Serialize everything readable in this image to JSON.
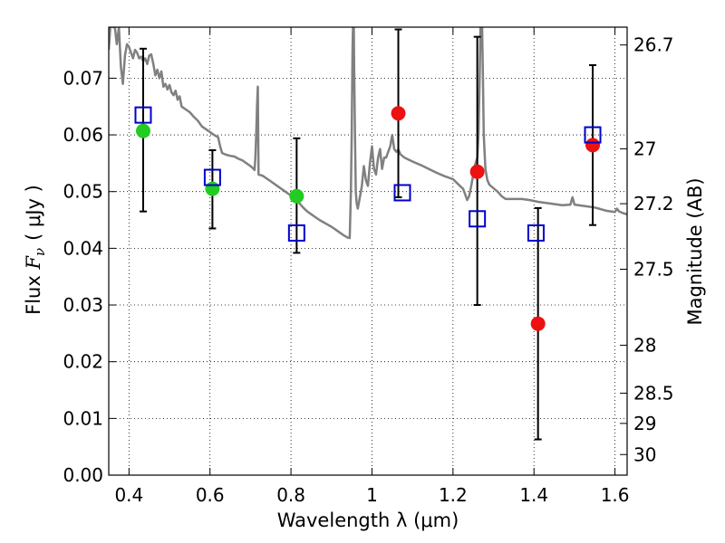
{
  "chart_data": {
    "type": "scatter",
    "xlabel": "Wavelength  λ (μm)",
    "ylabel": "Flux  F_ν  ( μJy )",
    "ylabel_parts": {
      "prefix": "Flux ",
      "symbol": "F",
      "subscript": "ν",
      "unit": "( μJy )"
    },
    "y2label": "Magnitude (AB)",
    "xlim": [
      0.35,
      1.63
    ],
    "ylim": [
      0.0,
      0.079
    ],
    "grid": true,
    "x_ticks": [
      {
        "value": 0.4,
        "label": "0.4"
      },
      {
        "value": 0.6,
        "label": "0.6"
      },
      {
        "value": 0.8,
        "label": "0.8"
      },
      {
        "value": 1.0,
        "label": "1"
      },
      {
        "value": 1.2,
        "label": "1.2"
      },
      {
        "value": 1.4,
        "label": "1.4"
      },
      {
        "value": 1.6,
        "label": "1.6"
      }
    ],
    "y_ticks": [
      {
        "value": 0.0,
        "label": "0.00"
      },
      {
        "value": 0.01,
        "label": "0.01"
      },
      {
        "value": 0.02,
        "label": "0.02"
      },
      {
        "value": 0.03,
        "label": "0.03"
      },
      {
        "value": 0.04,
        "label": "0.04"
      },
      {
        "value": 0.05,
        "label": "0.05"
      },
      {
        "value": 0.06,
        "label": "0.06"
      },
      {
        "value": 0.07,
        "label": "0.07"
      }
    ],
    "mag_ticks": [
      {
        "mag": 26.7,
        "label": "26.7"
      },
      {
        "mag": 27.0,
        "label": "27"
      },
      {
        "mag": 27.2,
        "label": "27.2"
      },
      {
        "mag": 27.5,
        "label": "27.5"
      },
      {
        "mag": 28.0,
        "label": "28"
      },
      {
        "mag": 28.5,
        "label": "28.5"
      },
      {
        "mag": 29.0,
        "label": "29"
      },
      {
        "mag": 30.0,
        "label": "30"
      }
    ],
    "observed": [
      {
        "x": 0.435,
        "y": 0.0607,
        "yerr_low": 0.0465,
        "yerr_high": 0.0752,
        "band": "optical",
        "color": "#22cc22"
      },
      {
        "x": 0.606,
        "y": 0.0505,
        "yerr_low": 0.0435,
        "yerr_high": 0.0573,
        "band": "optical",
        "color": "#22cc22"
      },
      {
        "x": 0.814,
        "y": 0.0492,
        "yerr_low": 0.0392,
        "yerr_high": 0.0594,
        "band": "optical",
        "color": "#22cc22"
      },
      {
        "x": 1.065,
        "y": 0.0638,
        "yerr_low": 0.049,
        "yerr_high": 0.0786,
        "band": "nir",
        "color": "#ee1111"
      },
      {
        "x": 1.26,
        "y": 0.0535,
        "yerr_low": 0.03,
        "yerr_high": 0.0773,
        "band": "nir",
        "color": "#ee1111"
      },
      {
        "x": 1.41,
        "y": 0.0267,
        "yerr_low": 0.0063,
        "yerr_high": 0.0471,
        "band": "nir",
        "color": "#ee1111"
      },
      {
        "x": 1.545,
        "y": 0.0582,
        "yerr_low": 0.0441,
        "yerr_high": 0.0723,
        "band": "nir",
        "color": "#ee1111"
      }
    ],
    "model_photometry": {
      "color": "#0000cc",
      "points": [
        {
          "x": 0.435,
          "y": 0.0635
        },
        {
          "x": 0.606,
          "y": 0.0525
        },
        {
          "x": 0.814,
          "y": 0.0427
        },
        {
          "x": 1.075,
          "y": 0.0498
        },
        {
          "x": 1.26,
          "y": 0.0452
        },
        {
          "x": 1.405,
          "y": 0.0427
        },
        {
          "x": 1.545,
          "y": 0.06
        }
      ]
    },
    "model_spectrum": {
      "color": "#808080",
      "points": [
        [
          0.35,
          0.075
        ],
        [
          0.355,
          0.08
        ],
        [
          0.36,
          0.079
        ],
        [
          0.365,
          0.079
        ],
        [
          0.37,
          0.076
        ],
        [
          0.375,
          0.079
        ],
        [
          0.38,
          0.072
        ],
        [
          0.385,
          0.069
        ],
        [
          0.39,
          0.074
        ],
        [
          0.395,
          0.076
        ],
        [
          0.4,
          0.0755
        ],
        [
          0.405,
          0.0745
        ],
        [
          0.41,
          0.0735
        ],
        [
          0.415,
          0.075
        ],
        [
          0.42,
          0.0745
        ],
        [
          0.425,
          0.0735
        ],
        [
          0.43,
          0.0738
        ],
        [
          0.435,
          0.073
        ],
        [
          0.44,
          0.0735
        ],
        [
          0.445,
          0.0725
        ],
        [
          0.45,
          0.074
        ],
        [
          0.455,
          0.0742
        ],
        [
          0.46,
          0.0725
        ],
        [
          0.465,
          0.0705
        ],
        [
          0.47,
          0.0715
        ],
        [
          0.475,
          0.07
        ],
        [
          0.48,
          0.0712
        ],
        [
          0.485,
          0.0685
        ],
        [
          0.49,
          0.069
        ],
        [
          0.495,
          0.068
        ],
        [
          0.5,
          0.0688
        ],
        [
          0.505,
          0.0675
        ],
        [
          0.51,
          0.067
        ],
        [
          0.515,
          0.0678
        ],
        [
          0.52,
          0.0662
        ],
        [
          0.525,
          0.0668
        ],
        [
          0.53,
          0.065
        ],
        [
          0.54,
          0.0645
        ],
        [
          0.55,
          0.064
        ],
        [
          0.56,
          0.0632
        ],
        [
          0.57,
          0.0625
        ],
        [
          0.58,
          0.0615
        ],
        [
          0.59,
          0.061
        ],
        [
          0.6,
          0.0605
        ],
        [
          0.61,
          0.06
        ],
        [
          0.62,
          0.0596
        ],
        [
          0.625,
          0.058
        ],
        [
          0.63,
          0.0568
        ],
        [
          0.64,
          0.0565
        ],
        [
          0.65,
          0.0563
        ],
        [
          0.66,
          0.0562
        ],
        [
          0.67,
          0.0558
        ],
        [
          0.68,
          0.0555
        ],
        [
          0.69,
          0.055
        ],
        [
          0.7,
          0.0545
        ],
        [
          0.705,
          0.0542
        ],
        [
          0.71,
          0.0538
        ],
        [
          0.712,
          0.056
        ],
        [
          0.714,
          0.06
        ],
        [
          0.716,
          0.065
        ],
        [
          0.718,
          0.0685
        ],
        [
          0.72,
          0.053
        ],
        [
          0.73,
          0.0528
        ],
        [
          0.75,
          0.0518
        ],
        [
          0.77,
          0.0508
        ],
        [
          0.79,
          0.0498
        ],
        [
          0.8,
          0.0493
        ],
        [
          0.81,
          0.0488
        ],
        [
          0.82,
          0.048
        ],
        [
          0.83,
          0.0472
        ],
        [
          0.84,
          0.0465
        ],
        [
          0.85,
          0.046
        ],
        [
          0.86,
          0.0455
        ],
        [
          0.87,
          0.045
        ],
        [
          0.88,
          0.0446
        ],
        [
          0.89,
          0.0442
        ],
        [
          0.9,
          0.0438
        ],
        [
          0.91,
          0.0433
        ],
        [
          0.92,
          0.0428
        ],
        [
          0.93,
          0.0423
        ],
        [
          0.94,
          0.0419
        ],
        [
          0.945,
          0.0418
        ],
        [
          0.948,
          0.05
        ],
        [
          0.95,
          0.06
        ],
        [
          0.952,
          0.075
        ],
        [
          0.953,
          0.079
        ],
        [
          0.955,
          0.079
        ],
        [
          0.956,
          0.072
        ],
        [
          0.958,
          0.06
        ],
        [
          0.96,
          0.05
        ],
        [
          0.962,
          0.048
        ],
        [
          0.965,
          0.047
        ],
        [
          0.97,
          0.049
        ],
        [
          0.975,
          0.051
        ],
        [
          0.98,
          0.0545
        ],
        [
          0.985,
          0.052
        ],
        [
          0.99,
          0.051
        ],
        [
          0.995,
          0.055
        ],
        [
          1.0,
          0.058
        ],
        [
          1.005,
          0.054
        ],
        [
          1.01,
          0.053
        ],
        [
          1.015,
          0.056
        ],
        [
          1.02,
          0.0575
        ],
        [
          1.025,
          0.054
        ],
        [
          1.03,
          0.056
        ],
        [
          1.035,
          0.056
        ],
        [
          1.04,
          0.057
        ],
        [
          1.045,
          0.058
        ],
        [
          1.05,
          0.06
        ],
        [
          1.055,
          0.0575
        ],
        [
          1.06,
          0.057
        ],
        [
          1.065,
          0.0574
        ],
        [
          1.07,
          0.0566
        ],
        [
          1.08,
          0.056
        ],
        [
          1.1,
          0.0553
        ],
        [
          1.12,
          0.0547
        ],
        [
          1.14,
          0.054
        ],
        [
          1.16,
          0.0533
        ],
        [
          1.18,
          0.0527
        ],
        [
          1.2,
          0.0522
        ],
        [
          1.21,
          0.0515
        ],
        [
          1.22,
          0.0508
        ],
        [
          1.225,
          0.0505
        ],
        [
          1.23,
          0.0495
        ],
        [
          1.235,
          0.0485
        ],
        [
          1.24,
          0.0492
        ],
        [
          1.245,
          0.051
        ],
        [
          1.25,
          0.053
        ],
        [
          1.255,
          0.0548
        ],
        [
          1.26,
          0.056
        ],
        [
          1.263,
          0.06
        ],
        [
          1.266,
          0.07
        ],
        [
          1.268,
          0.079
        ],
        [
          1.272,
          0.079
        ],
        [
          1.274,
          0.07
        ],
        [
          1.276,
          0.06
        ],
        [
          1.28,
          0.054
        ],
        [
          1.285,
          0.052
        ],
        [
          1.29,
          0.0512
        ],
        [
          1.3,
          0.0506
        ],
        [
          1.31,
          0.05
        ],
        [
          1.32,
          0.0492
        ],
        [
          1.33,
          0.0487
        ],
        [
          1.35,
          0.0487
        ],
        [
          1.37,
          0.0487
        ],
        [
          1.39,
          0.0485
        ],
        [
          1.41,
          0.0482
        ],
        [
          1.43,
          0.048
        ],
        [
          1.45,
          0.0478
        ],
        [
          1.47,
          0.0476
        ],
        [
          1.49,
          0.0477
        ],
        [
          1.495,
          0.049
        ],
        [
          1.5,
          0.0477
        ],
        [
          1.51,
          0.0476
        ],
        [
          1.53,
          0.0474
        ],
        [
          1.55,
          0.0472
        ],
        [
          1.56,
          0.047
        ],
        [
          1.57,
          0.0468
        ],
        [
          1.58,
          0.0466
        ],
        [
          1.59,
          0.0465
        ],
        [
          1.6,
          0.0464
        ],
        [
          1.605,
          0.047
        ],
        [
          1.61,
          0.0465
        ],
        [
          1.62,
          0.0462
        ],
        [
          1.63,
          0.046
        ]
      ]
    }
  }
}
